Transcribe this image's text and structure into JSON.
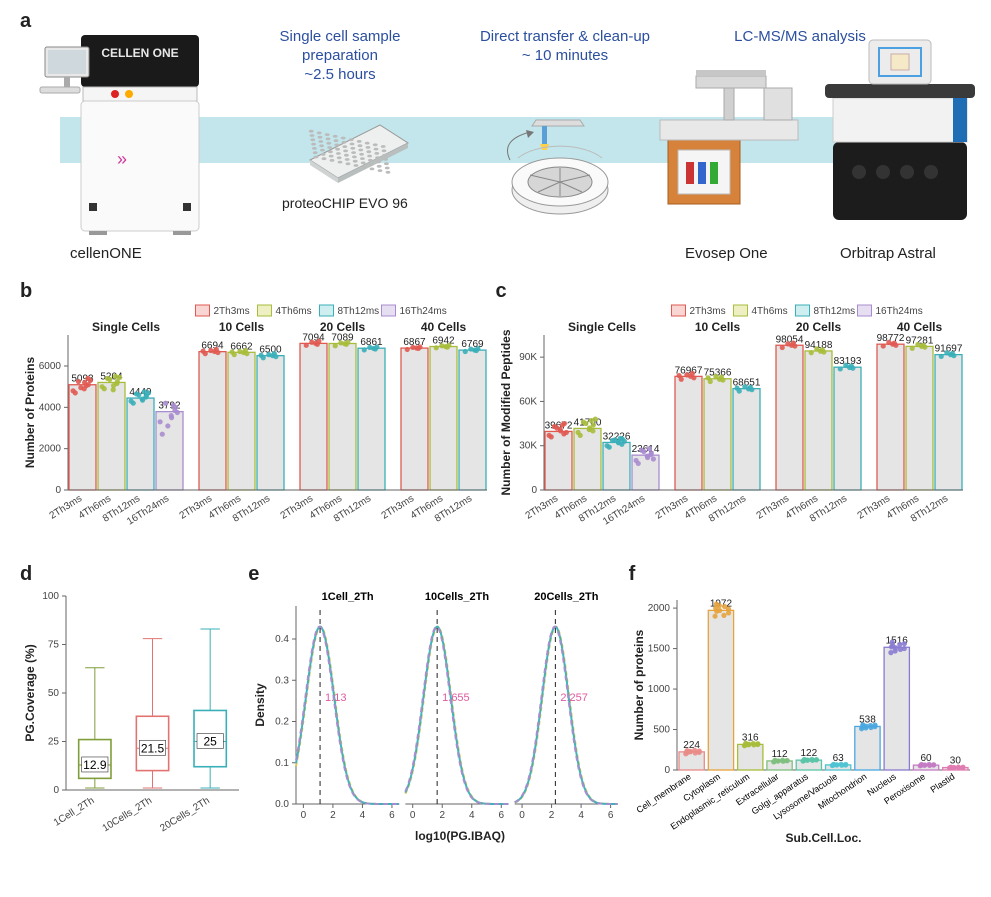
{
  "colors": {
    "arrow_fill": "#c3e6ec",
    "step_title": "#2b4f9f",
    "grid": "#e0e0e0",
    "bar_fill": "#e5e5e5",
    "series": {
      "2Th3ms": {
        "fill": "#f9d5d3",
        "stroke": "#e05a52"
      },
      "4Th6ms": {
        "fill": "#eef0c4",
        "stroke": "#a7bd3b"
      },
      "8Th12ms": {
        "fill": "#cfeef0",
        "stroke": "#3aafb9"
      },
      "16Th24ms": {
        "fill": "#e6dff2",
        "stroke": "#a98ccf"
      }
    },
    "box": {
      "1Cell_2Th": "#7f9e3a",
      "10Cells_2Th": "#e17470",
      "20Cells_2Th": "#3aafb9"
    },
    "density_lines": [
      "#e6c84a",
      "#3aafb9",
      "#a98ccf"
    ],
    "cellloc": {
      "Cell_membrane": "#e98b87",
      "Cytoplasm": "#e6a23c",
      "Endoplasmic_reticulum": "#a7bd3b",
      "Extracellular": "#7fbf7f",
      "Golgi_apparatus": "#5bc4a8",
      "Lysosome/Vacuole": "#4fc3d1",
      "Mitochondrion": "#4aa7e0",
      "Nucleus": "#8a7bd1",
      "Peroxisome": "#c47bc4",
      "Plastid": "#e07bb0"
    },
    "median_label": "#e05aa0"
  },
  "panel_a": {
    "steps": [
      {
        "title_line1": "Single cell sample",
        "title_line2": "preparation",
        "sub": "~2.5 hours"
      },
      {
        "title_line1": "Direct transfer & clean-up",
        "title_line2": "",
        "sub": "~ 10 minutes"
      },
      {
        "title_line1": "LC-MS/MS analysis",
        "title_line2": "",
        "sub": ""
      }
    ],
    "captions": {
      "cellenone": "cellenONE",
      "chip": "proteoCHIP EVO 96",
      "evosep": "Evosep One",
      "astral": "Orbitrap Astral"
    }
  },
  "legend_keys": [
    "2Th3ms",
    "4Th6ms",
    "8Th12ms",
    "16Th24ms"
  ],
  "panel_b": {
    "y_label": "Number of Proteins",
    "ylim": [
      0,
      7500
    ],
    "ytick_step": 2000,
    "groups": [
      {
        "title": "Single Cells",
        "bars": [
          {
            "key": "2Th3ms",
            "value": 5093,
            "points": [
              4700,
              4950,
              5200,
              5050,
              5400,
              4800,
              5250,
              4900,
              5100,
              5300
            ]
          },
          {
            "key": "4Th6ms",
            "value": 5204,
            "points": [
              4900,
              5350,
              5050,
              5500,
              5150,
              5000,
              5400,
              4850,
              5250,
              5450
            ]
          },
          {
            "key": "8Th12ms",
            "value": 4449,
            "points": [
              4200,
              4600,
              4350,
              4750,
              4500,
              4300,
              4650,
              4400,
              4550,
              4700
            ]
          },
          {
            "key": "16Th24ms",
            "value": 3792,
            "points": [
              2700,
              3100,
              3500,
              4100,
              3850,
              3300,
              4200,
              3600,
              4000,
              3750
            ]
          }
        ]
      },
      {
        "title": "10 Cells",
        "bars": [
          {
            "key": "2Th3ms",
            "value": 6694,
            "points": [
              6600,
              6750,
              6700,
              6800,
              6650,
              6720
            ]
          },
          {
            "key": "4Th6ms",
            "value": 6662,
            "points": [
              6550,
              6700,
              6650,
              6750,
              6600,
              6680
            ]
          },
          {
            "key": "8Th12ms",
            "value": 6500,
            "points": [
              6400,
              6550,
              6500,
              6600,
              6450,
              6520
            ]
          }
        ]
      },
      {
        "title": "20 Cells",
        "bars": [
          {
            "key": "2Th3ms",
            "value": 7094,
            "points": [
              7000,
              7150,
              7100,
              7050,
              7200
            ]
          },
          {
            "key": "4Th6ms",
            "value": 7089,
            "points": [
              6980,
              7120,
              7080,
              7050,
              7150
            ]
          },
          {
            "key": "8Th12ms",
            "value": 6861,
            "points": [
              6780,
              6900,
              6850,
              6820,
              6920
            ]
          }
        ]
      },
      {
        "title": "40 Cells",
        "bars": [
          {
            "key": "2Th3ms",
            "value": 6867,
            "points": [
              6800,
              6900,
              6870,
              6850,
              6920
            ]
          },
          {
            "key": "4Th6ms",
            "value": 6942,
            "points": [
              6880,
              6980,
              6940,
              6910,
              7000
            ]
          },
          {
            "key": "8Th12ms",
            "value": 6769,
            "points": [
              6700,
              6820,
              6770,
              6750,
              6840
            ]
          }
        ]
      }
    ]
  },
  "panel_c": {
    "y_label": "Number of Modified Peptides",
    "ylim": [
      0,
      105000
    ],
    "yticks": [
      0,
      30000,
      60000,
      90000
    ],
    "ytick_labels": [
      "0",
      "30K",
      "60K",
      "90K"
    ],
    "groups": [
      {
        "title": "Single Cells",
        "bars": [
          {
            "key": "2Th3ms",
            "value": 39672,
            "points": [
              36000,
              42000,
              40000,
              44000,
              38000,
              37000,
              43000,
              41000,
              45000,
              39000
            ]
          },
          {
            "key": "4Th6ms",
            "value": 41700,
            "points": [
              37000,
              45000,
              42000,
              47000,
              40000,
              39000,
              46000,
              41000,
              44000,
              48000
            ]
          },
          {
            "key": "8Th12ms",
            "value": 32226,
            "points": [
              29000,
              34000,
              32000,
              35000,
              31000,
              30000,
              33500,
              32500,
              34500,
              33000
            ]
          },
          {
            "key": "16Th24ms",
            "value": 23614,
            "points": [
              18000,
              26000,
              22000,
              28000,
              24000,
              20000,
              27000,
              23000,
              25000,
              21000
            ]
          }
        ]
      },
      {
        "title": "10 Cells",
        "bars": [
          {
            "key": "2Th3ms",
            "value": 76967,
            "points": [
              75000,
              78000,
              77000,
              79000,
              76000,
              77500
            ]
          },
          {
            "key": "4Th6ms",
            "value": 75366,
            "points": [
              73500,
              77000,
              75000,
              76500,
              74500,
              76000
            ]
          },
          {
            "key": "8Th12ms",
            "value": 68651,
            "points": [
              67000,
              70000,
              68500,
              69500,
              68000,
              69000
            ]
          }
        ]
      },
      {
        "title": "20 Cells",
        "bars": [
          {
            "key": "2Th3ms",
            "value": 98054,
            "points": [
              96500,
              99000,
              98000,
              99500,
              97500
            ]
          },
          {
            "key": "4Th6ms",
            "value": 94188,
            "points": [
              93000,
              95500,
              94000,
              95000,
              93500
            ]
          },
          {
            "key": "8Th12ms",
            "value": 83193,
            "points": [
              82000,
              84500,
              83000,
              84000,
              82500
            ]
          }
        ]
      },
      {
        "title": "40 Cells",
        "bars": [
          {
            "key": "2Th3ms",
            "value": 98772,
            "points": [
              97500,
              100000,
              98800,
              99500,
              98000
            ]
          },
          {
            "key": "4Th6ms",
            "value": 97281,
            "points": [
              96000,
              98500,
              97300,
              98000,
              96800
            ]
          },
          {
            "key": "8Th12ms",
            "value": 91697,
            "points": [
              90500,
              93000,
              91700,
              92500,
              91000
            ]
          }
        ]
      }
    ]
  },
  "panel_d": {
    "y_label": "PG.Coverage (%)",
    "ylim": [
      0,
      100
    ],
    "ytick_step": 25,
    "boxes": [
      {
        "label": "1Cell_2Th",
        "median": 12.9,
        "q1": 6,
        "q3": 26,
        "lo": 1,
        "hi": 63,
        "color_key": "1Cell_2Th"
      },
      {
        "label": "10Cells_2Th",
        "median": 21.5,
        "q1": 10,
        "q3": 38,
        "lo": 1,
        "hi": 78,
        "color_key": "10Cells_2Th"
      },
      {
        "label": "20Cells_2Th",
        "median": 25,
        "q1": 12,
        "q3": 41,
        "lo": 1,
        "hi": 83,
        "color_key": "20Cells_2Th"
      }
    ]
  },
  "panel_e": {
    "x_label": "log10(PG.IBAQ)",
    "y_label": "Density",
    "xlim": [
      -0.5,
      6.5
    ],
    "xtick_step": 2,
    "ylim": [
      0,
      0.48
    ],
    "ytick_step": 0.1,
    "subplots": [
      {
        "title": "1Cell_2Th",
        "median": 1.13,
        "mu": 1.13,
        "sigma": 0.95
      },
      {
        "title": "10Cells_2Th",
        "median": 1.655,
        "mu": 1.655,
        "sigma": 0.92
      },
      {
        "title": "20Cells_2Th",
        "median": 2.257,
        "mu": 2.257,
        "sigma": 0.9
      }
    ]
  },
  "panel_f": {
    "y_label": "Number of proteins",
    "x_label": "Sub.Cell.Loc.",
    "ylim": [
      0,
      2100
    ],
    "ytick_step": 500,
    "bars": [
      {
        "label": "Cell_membrane",
        "value": 224,
        "points": [
          200,
          240,
          225,
          210,
          235,
          220,
          215,
          230,
          245,
          218
        ]
      },
      {
        "label": "Cytoplasm",
        "value": 1972,
        "points": [
          1900,
          2050,
          1970,
          2020,
          1940,
          2000,
          1960,
          2030,
          1910,
          1990
        ]
      },
      {
        "label": "Endoplasmic_reticulum",
        "value": 316,
        "points": [
          300,
          330,
          318,
          310,
          325,
          305,
          320,
          312,
          328,
          315
        ]
      },
      {
        "label": "Extracellular",
        "value": 112,
        "points": [
          100,
          120,
          112,
          108,
          118,
          105,
          115,
          110,
          122,
          114
        ]
      },
      {
        "label": "Golgi_apparatus",
        "value": 122,
        "points": [
          110,
          130,
          122,
          118,
          128,
          115,
          125,
          120,
          132,
          124
        ]
      },
      {
        "label": "Lysosome/Vacuole",
        "value": 63,
        "points": [
          55,
          70,
          62,
          58,
          68,
          60,
          65,
          64,
          72,
          61
        ]
      },
      {
        "label": "Mitochondrion",
        "value": 538,
        "points": [
          510,
          560,
          540,
          525,
          555,
          530,
          545,
          520,
          550,
          535
        ]
      },
      {
        "label": "Nucleus",
        "value": 1516,
        "points": [
          1450,
          1580,
          1510,
          1490,
          1560,
          1520,
          1540,
          1470,
          1550,
          1500
        ]
      },
      {
        "label": "Peroxisome",
        "value": 60,
        "points": [
          52,
          68,
          60,
          56,
          65,
          58,
          62,
          59,
          70,
          61
        ]
      },
      {
        "label": "Plastid",
        "value": 30,
        "points": [
          25,
          35,
          30,
          28,
          34,
          27,
          32,
          29,
          36,
          31
        ]
      }
    ]
  }
}
